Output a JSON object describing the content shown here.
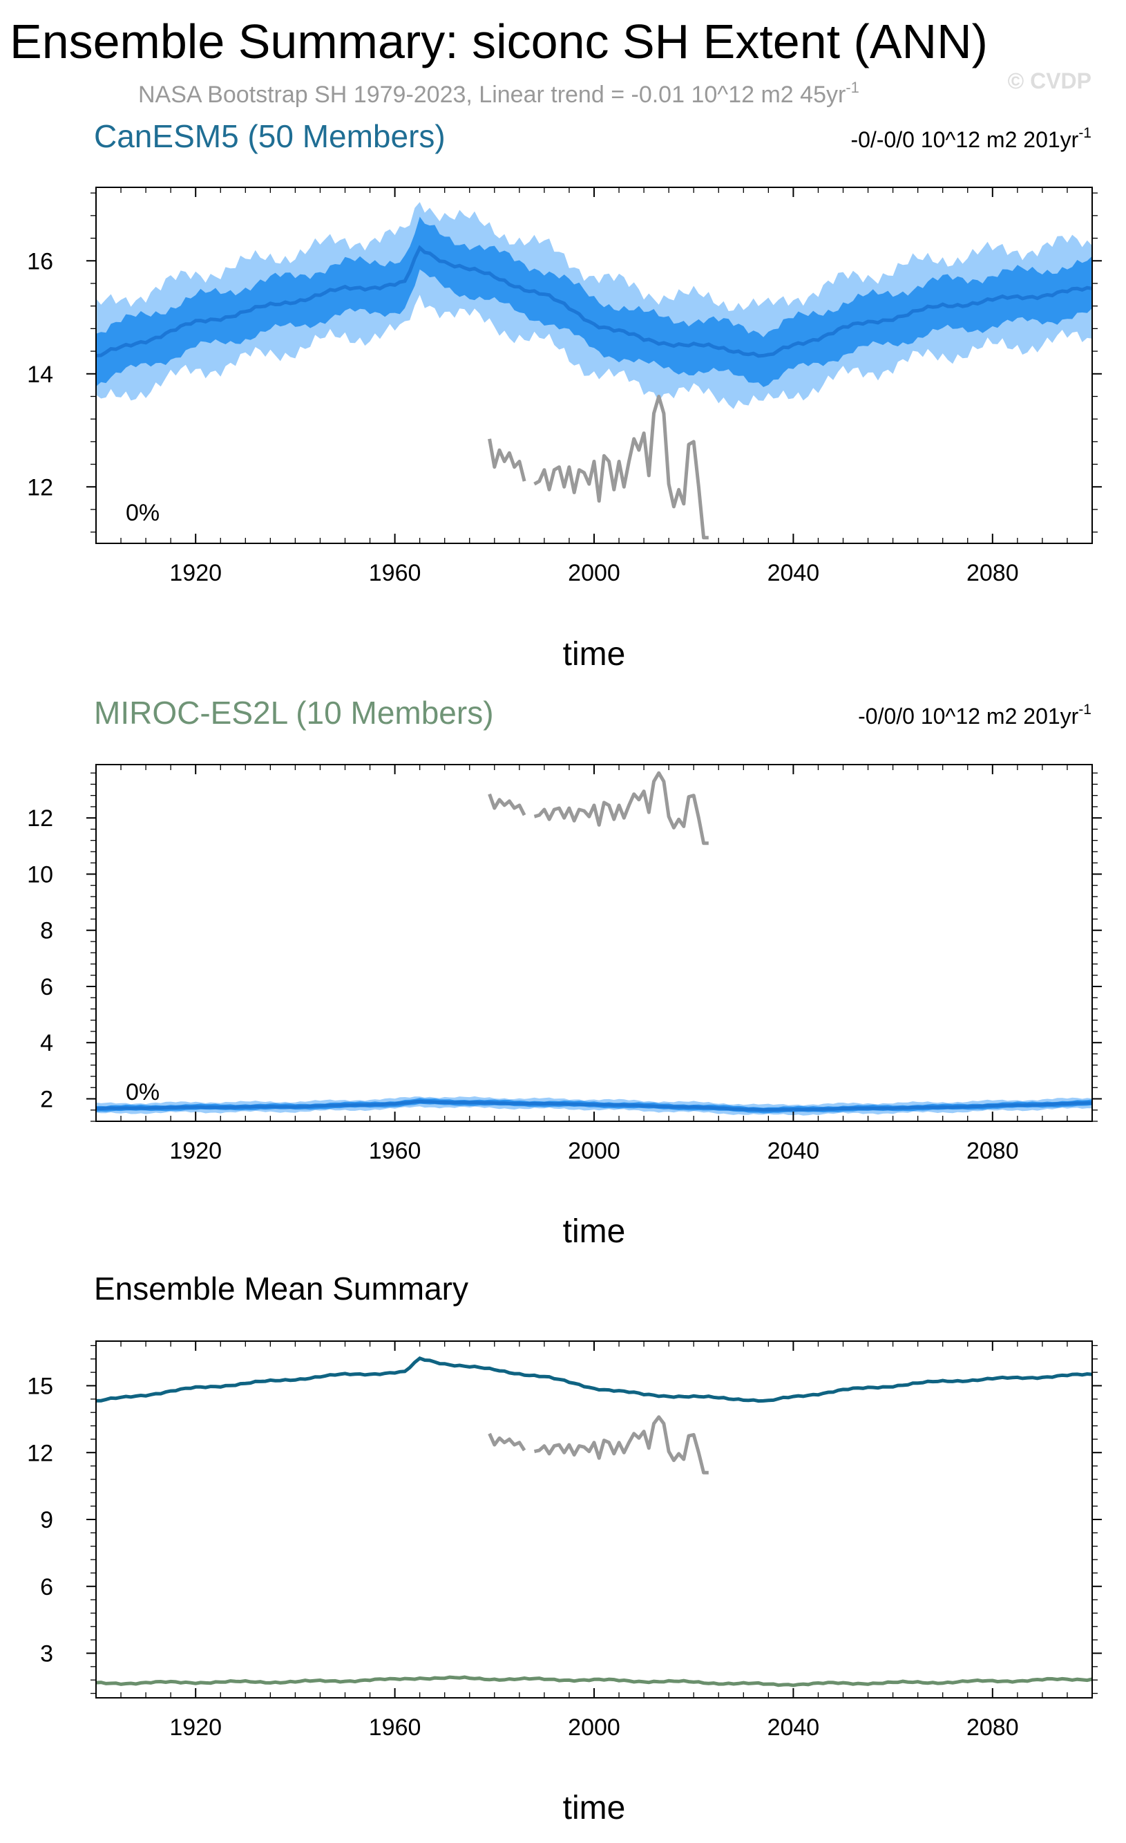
{
  "figure": {
    "title": "Ensemble Summary: siconc SH Extent (ANN)",
    "obs_note": "NASA Bootstrap SH 1979-2023, Linear trend = -0.01 10^12 m2 45yr",
    "obs_note_sup": "-1",
    "credit": "© CVDP"
  },
  "colors": {
    "canesm_title": "#1f6e94",
    "miroc_title": "#6f9476",
    "band_outer": "#9ccdfb",
    "band_inner": "#2f94ef",
    "member_mean": "#1c77d6",
    "obs": "#999999",
    "ens_canesm": "#0f6382",
    "ens_miroc": "#6a8f6c"
  },
  "chart_data": [
    {
      "type": "area",
      "title": "CanESM5 (50 Members)",
      "trend_label": "-0/-0/0 10^12 m2 201yr",
      "trend_sup": "-1",
      "percent_label": "0%",
      "xlabel": "time",
      "ylabel": "",
      "xlim": [
        1900,
        2100
      ],
      "ylim": [
        11,
        17.3
      ],
      "xticks": [
        1920,
        1960,
        2000,
        2040,
        2080
      ],
      "yticks": [
        12,
        14,
        16
      ],
      "ensemble_mean_knots": [
        [
          1900,
          14.3
        ],
        [
          1910,
          14.6
        ],
        [
          1920,
          14.9
        ],
        [
          1930,
          15.1
        ],
        [
          1940,
          15.3
        ],
        [
          1950,
          15.5
        ],
        [
          1962,
          15.6
        ],
        [
          1965,
          16.2
        ],
        [
          1970,
          16.0
        ],
        [
          1980,
          15.7
        ],
        [
          1990,
          15.4
        ],
        [
          2000,
          14.9
        ],
        [
          2010,
          14.6
        ],
        [
          2020,
          14.5
        ],
        [
          2030,
          14.4
        ],
        [
          2035,
          14.3
        ],
        [
          2040,
          14.5
        ],
        [
          2050,
          14.8
        ],
        [
          2060,
          15.0
        ],
        [
          2070,
          15.2
        ],
        [
          2080,
          15.3
        ],
        [
          2090,
          15.4
        ],
        [
          2100,
          15.5
        ]
      ],
      "inner_halfwidth": 0.45,
      "outer_halfwidth": 0.85,
      "observations": {
        "name": "NASA Bootstrap",
        "x": [
          1979,
          1980,
          1981,
          1982,
          1983,
          1984,
          1985,
          1986,
          1988,
          1989,
          1990,
          1991,
          1992,
          1993,
          1994,
          1995,
          1996,
          1997,
          1998,
          1999,
          2000,
          2001,
          2002,
          2003,
          2004,
          2005,
          2006,
          2007,
          2008,
          2009,
          2010,
          2011,
          2012,
          2013,
          2014,
          2015,
          2016,
          2017,
          2018,
          2019,
          2020,
          2021,
          2022,
          2023
        ],
        "y": [
          12.85,
          12.35,
          12.65,
          12.45,
          12.6,
          12.35,
          12.45,
          12.1,
          12.05,
          12.1,
          12.3,
          11.95,
          12.3,
          12.35,
          12.0,
          12.35,
          11.9,
          12.3,
          12.25,
          12.05,
          12.45,
          11.75,
          12.55,
          12.45,
          11.95,
          12.45,
          12.0,
          12.45,
          12.85,
          12.65,
          12.95,
          12.2,
          13.3,
          13.6,
          13.3,
          12.05,
          11.65,
          11.95,
          11.7,
          12.75,
          12.8,
          12.0,
          11.1,
          11.1
        ]
      }
    },
    {
      "type": "area",
      "title": "MIROC-ES2L (10 Members)",
      "trend_label": "-0/0/0 10^12 m2 201yr",
      "trend_sup": "-1",
      "percent_label": "0%",
      "xlabel": "time",
      "ylabel": "",
      "xlim": [
        1900,
        2100
      ],
      "ylim": [
        1.2,
        13.9
      ],
      "xticks": [
        1920,
        1960,
        2000,
        2040,
        2080
      ],
      "yticks": [
        2,
        4,
        6,
        8,
        10,
        12
      ],
      "ensemble_mean_knots": [
        [
          1900,
          1.65
        ],
        [
          1920,
          1.7
        ],
        [
          1940,
          1.72
        ],
        [
          1960,
          1.82
        ],
        [
          1965,
          1.9
        ],
        [
          1980,
          1.85
        ],
        [
          2000,
          1.8
        ],
        [
          2020,
          1.7
        ],
        [
          2035,
          1.6
        ],
        [
          2050,
          1.65
        ],
        [
          2070,
          1.7
        ],
        [
          2090,
          1.8
        ],
        [
          2100,
          1.85
        ]
      ],
      "inner_halfwidth": 0.1,
      "outer_halfwidth": 0.18,
      "observations": {
        "name": "NASA Bootstrap",
        "x": [
          1979,
          1980,
          1981,
          1982,
          1983,
          1984,
          1985,
          1986,
          1988,
          1989,
          1990,
          1991,
          1992,
          1993,
          1994,
          1995,
          1996,
          1997,
          1998,
          1999,
          2000,
          2001,
          2002,
          2003,
          2004,
          2005,
          2006,
          2007,
          2008,
          2009,
          2010,
          2011,
          2012,
          2013,
          2014,
          2015,
          2016,
          2017,
          2018,
          2019,
          2020,
          2021,
          2022,
          2023
        ],
        "y": [
          12.85,
          12.35,
          12.65,
          12.45,
          12.6,
          12.35,
          12.45,
          12.1,
          12.05,
          12.1,
          12.3,
          11.95,
          12.3,
          12.35,
          12.0,
          12.35,
          11.9,
          12.3,
          12.25,
          12.05,
          12.45,
          11.75,
          12.55,
          12.45,
          11.95,
          12.45,
          12.0,
          12.45,
          12.85,
          12.65,
          12.95,
          12.2,
          13.3,
          13.6,
          13.3,
          12.05,
          11.65,
          11.95,
          11.7,
          12.75,
          12.8,
          12.0,
          11.1,
          11.1
        ]
      }
    },
    {
      "type": "line",
      "title": "Ensemble Mean Summary",
      "xlabel": "time",
      "ylabel": "",
      "xlim": [
        1900,
        2100
      ],
      "ylim": [
        1,
        17
      ],
      "xticks": [
        1920,
        1960,
        2000,
        2040,
        2080
      ],
      "yticks": [
        3,
        6,
        9,
        12,
        15
      ],
      "series": [
        {
          "colorKey": "ens_canesm",
          "knots": [
            [
              1900,
              14.3
            ],
            [
              1910,
              14.6
            ],
            [
              1920,
              14.9
            ],
            [
              1930,
              15.1
            ],
            [
              1940,
              15.3
            ],
            [
              1950,
              15.5
            ],
            [
              1962,
              15.6
            ],
            [
              1965,
              16.2
            ],
            [
              1970,
              16.0
            ],
            [
              1980,
              15.7
            ],
            [
              1990,
              15.4
            ],
            [
              2000,
              14.9
            ],
            [
              2010,
              14.6
            ],
            [
              2020,
              14.5
            ],
            [
              2030,
              14.4
            ],
            [
              2035,
              14.3
            ],
            [
              2040,
              14.5
            ],
            [
              2050,
              14.8
            ],
            [
              2060,
              15.0
            ],
            [
              2070,
              15.2
            ],
            [
              2080,
              15.3
            ],
            [
              2090,
              15.4
            ],
            [
              2100,
              15.5
            ]
          ]
        },
        {
          "colorKey": "ens_miroc",
          "knots": [
            [
              1900,
              1.65
            ],
            [
              1920,
              1.7
            ],
            [
              1940,
              1.72
            ],
            [
              1960,
              1.82
            ],
            [
              1965,
              1.9
            ],
            [
              1980,
              1.85
            ],
            [
              2000,
              1.8
            ],
            [
              2020,
              1.7
            ],
            [
              2035,
              1.6
            ],
            [
              2050,
              1.65
            ],
            [
              2070,
              1.7
            ],
            [
              2090,
              1.8
            ],
            [
              2100,
              1.85
            ]
          ]
        }
      ],
      "observations": {
        "name": "NASA Bootstrap",
        "x": [
          1979,
          1980,
          1981,
          1982,
          1983,
          1984,
          1985,
          1986,
          1988,
          1989,
          1990,
          1991,
          1992,
          1993,
          1994,
          1995,
          1996,
          1997,
          1998,
          1999,
          2000,
          2001,
          2002,
          2003,
          2004,
          2005,
          2006,
          2007,
          2008,
          2009,
          2010,
          2011,
          2012,
          2013,
          2014,
          2015,
          2016,
          2017,
          2018,
          2019,
          2020,
          2021,
          2022,
          2023
        ],
        "y": [
          12.85,
          12.35,
          12.65,
          12.45,
          12.6,
          12.35,
          12.45,
          12.1,
          12.05,
          12.1,
          12.3,
          11.95,
          12.3,
          12.35,
          12.0,
          12.35,
          11.9,
          12.3,
          12.25,
          12.05,
          12.45,
          11.75,
          12.55,
          12.45,
          11.95,
          12.45,
          12.0,
          12.45,
          12.85,
          12.65,
          12.95,
          12.2,
          13.3,
          13.6,
          13.3,
          12.05,
          11.65,
          11.95,
          11.7,
          12.75,
          12.8,
          12.0,
          11.1,
          11.1
        ]
      }
    }
  ]
}
